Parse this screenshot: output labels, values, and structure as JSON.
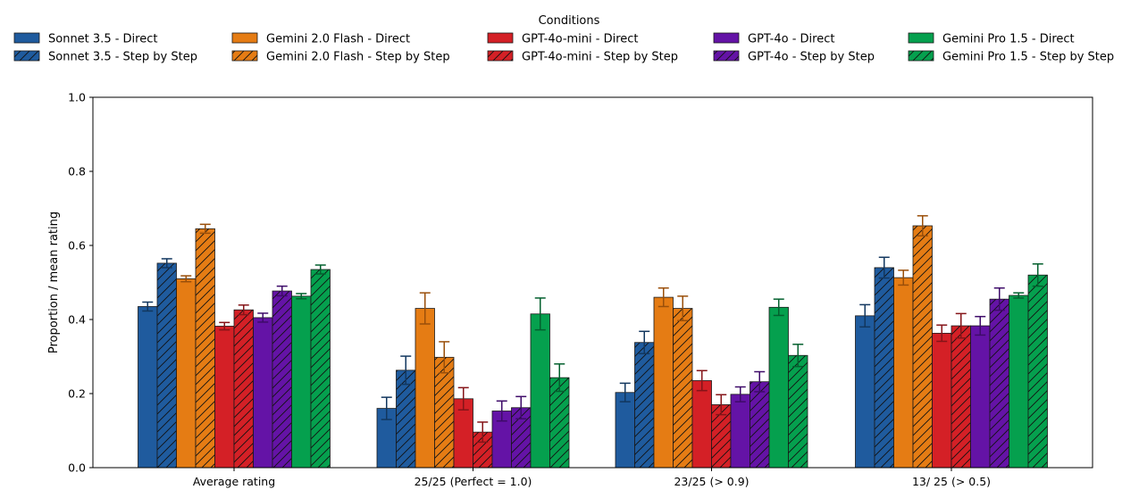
{
  "chart_data": {
    "type": "bar",
    "title": "",
    "xlabel": "",
    "ylabel": "Proportion / mean rating",
    "ylim": [
      0,
      1.0
    ],
    "yticks": [
      "0.0",
      "0.2",
      "0.4",
      "0.6",
      "0.8",
      "1.0"
    ],
    "grid": false,
    "legend": {
      "title": "Conditions",
      "placement": "top-center",
      "columns": 5
    },
    "categories": [
      "Average rating",
      "25/25 (Perfect = 1.0)",
      "23/25 (> 0.9)",
      "13/ 25 (> 0.5)"
    ],
    "series": [
      {
        "name": "Sonnet 3.5 - Direct",
        "color": "#1f5b9e",
        "errcolor": "#12375f",
        "hatch": false,
        "values": [
          0.435,
          0.16,
          0.203,
          0.41
        ],
        "errors": [
          0.012,
          0.03,
          0.025,
          0.03
        ]
      },
      {
        "name": "Sonnet 3.5 - Step by Step",
        "color": "#1f5b9e",
        "errcolor": "#12375f",
        "hatch": true,
        "values": [
          0.552,
          0.263,
          0.338,
          0.54
        ],
        "errors": [
          0.012,
          0.038,
          0.03,
          0.028
        ]
      },
      {
        "name": "Gemini 2.0 Flash - Direct",
        "color": "#e57c14",
        "errcolor": "#9a4f0a",
        "hatch": false,
        "values": [
          0.51,
          0.43,
          0.46,
          0.513
        ],
        "errors": [
          0.008,
          0.042,
          0.025,
          0.02
        ]
      },
      {
        "name": "Gemini 2.0 Flash - Step by Step",
        "color": "#e57c14",
        "errcolor": "#9a4f0a",
        "hatch": true,
        "values": [
          0.645,
          0.298,
          0.43,
          0.653
        ],
        "errors": [
          0.012,
          0.042,
          0.033,
          0.027
        ]
      },
      {
        "name": "GPT-4o-mini - Direct",
        "color": "#d42026",
        "errcolor": "#851418",
        "hatch": false,
        "values": [
          0.382,
          0.186,
          0.235,
          0.363
        ],
        "errors": [
          0.01,
          0.03,
          0.027,
          0.022
        ]
      },
      {
        "name": "GPT-4o-mini - Step by Step",
        "color": "#d42026",
        "errcolor": "#851418",
        "hatch": true,
        "values": [
          0.426,
          0.096,
          0.17,
          0.383
        ],
        "errors": [
          0.013,
          0.027,
          0.027,
          0.033
        ]
      },
      {
        "name": "GPT-4o - Direct",
        "color": "#6413a6",
        "errcolor": "#3e0b69",
        "hatch": false,
        "values": [
          0.405,
          0.153,
          0.198,
          0.383
        ],
        "errors": [
          0.012,
          0.027,
          0.02,
          0.025
        ]
      },
      {
        "name": "GPT-4o - Step by Step",
        "color": "#6413a6",
        "errcolor": "#3e0b69",
        "hatch": true,
        "values": [
          0.477,
          0.162,
          0.232,
          0.455
        ],
        "errors": [
          0.013,
          0.03,
          0.027,
          0.03
        ]
      },
      {
        "name": "Gemini Pro 1.5 - Direct",
        "color": "#05a04e",
        "errcolor": "#03602e",
        "hatch": false,
        "values": [
          0.463,
          0.415,
          0.433,
          0.465
        ],
        "errors": [
          0.007,
          0.043,
          0.022,
          0.007
        ]
      },
      {
        "name": "Gemini Pro 1.5 - Step by Step",
        "color": "#05a04e",
        "errcolor": "#03602e",
        "hatch": true,
        "values": [
          0.535,
          0.243,
          0.303,
          0.52
        ],
        "errors": [
          0.012,
          0.037,
          0.03,
          0.03
        ]
      }
    ]
  }
}
